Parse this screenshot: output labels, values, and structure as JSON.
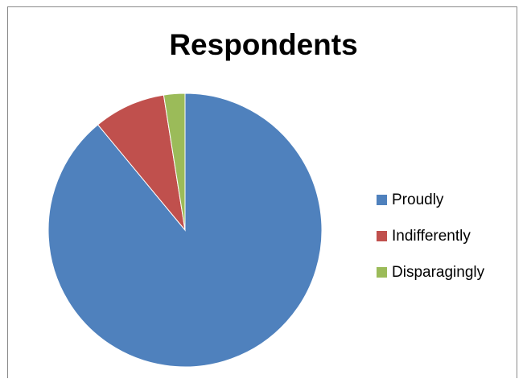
{
  "chart_data": {
    "type": "pie",
    "title": "Respondents",
    "categories": [
      "Proudly",
      "Indifferently",
      "Disparagingly"
    ],
    "values": [
      89,
      8.5,
      2.5
    ],
    "colors": [
      "#4f81bd",
      "#c0504d",
      "#9bbb59"
    ],
    "start_angle_deg": 0,
    "direction": "clockwise",
    "legend_position": "right"
  }
}
